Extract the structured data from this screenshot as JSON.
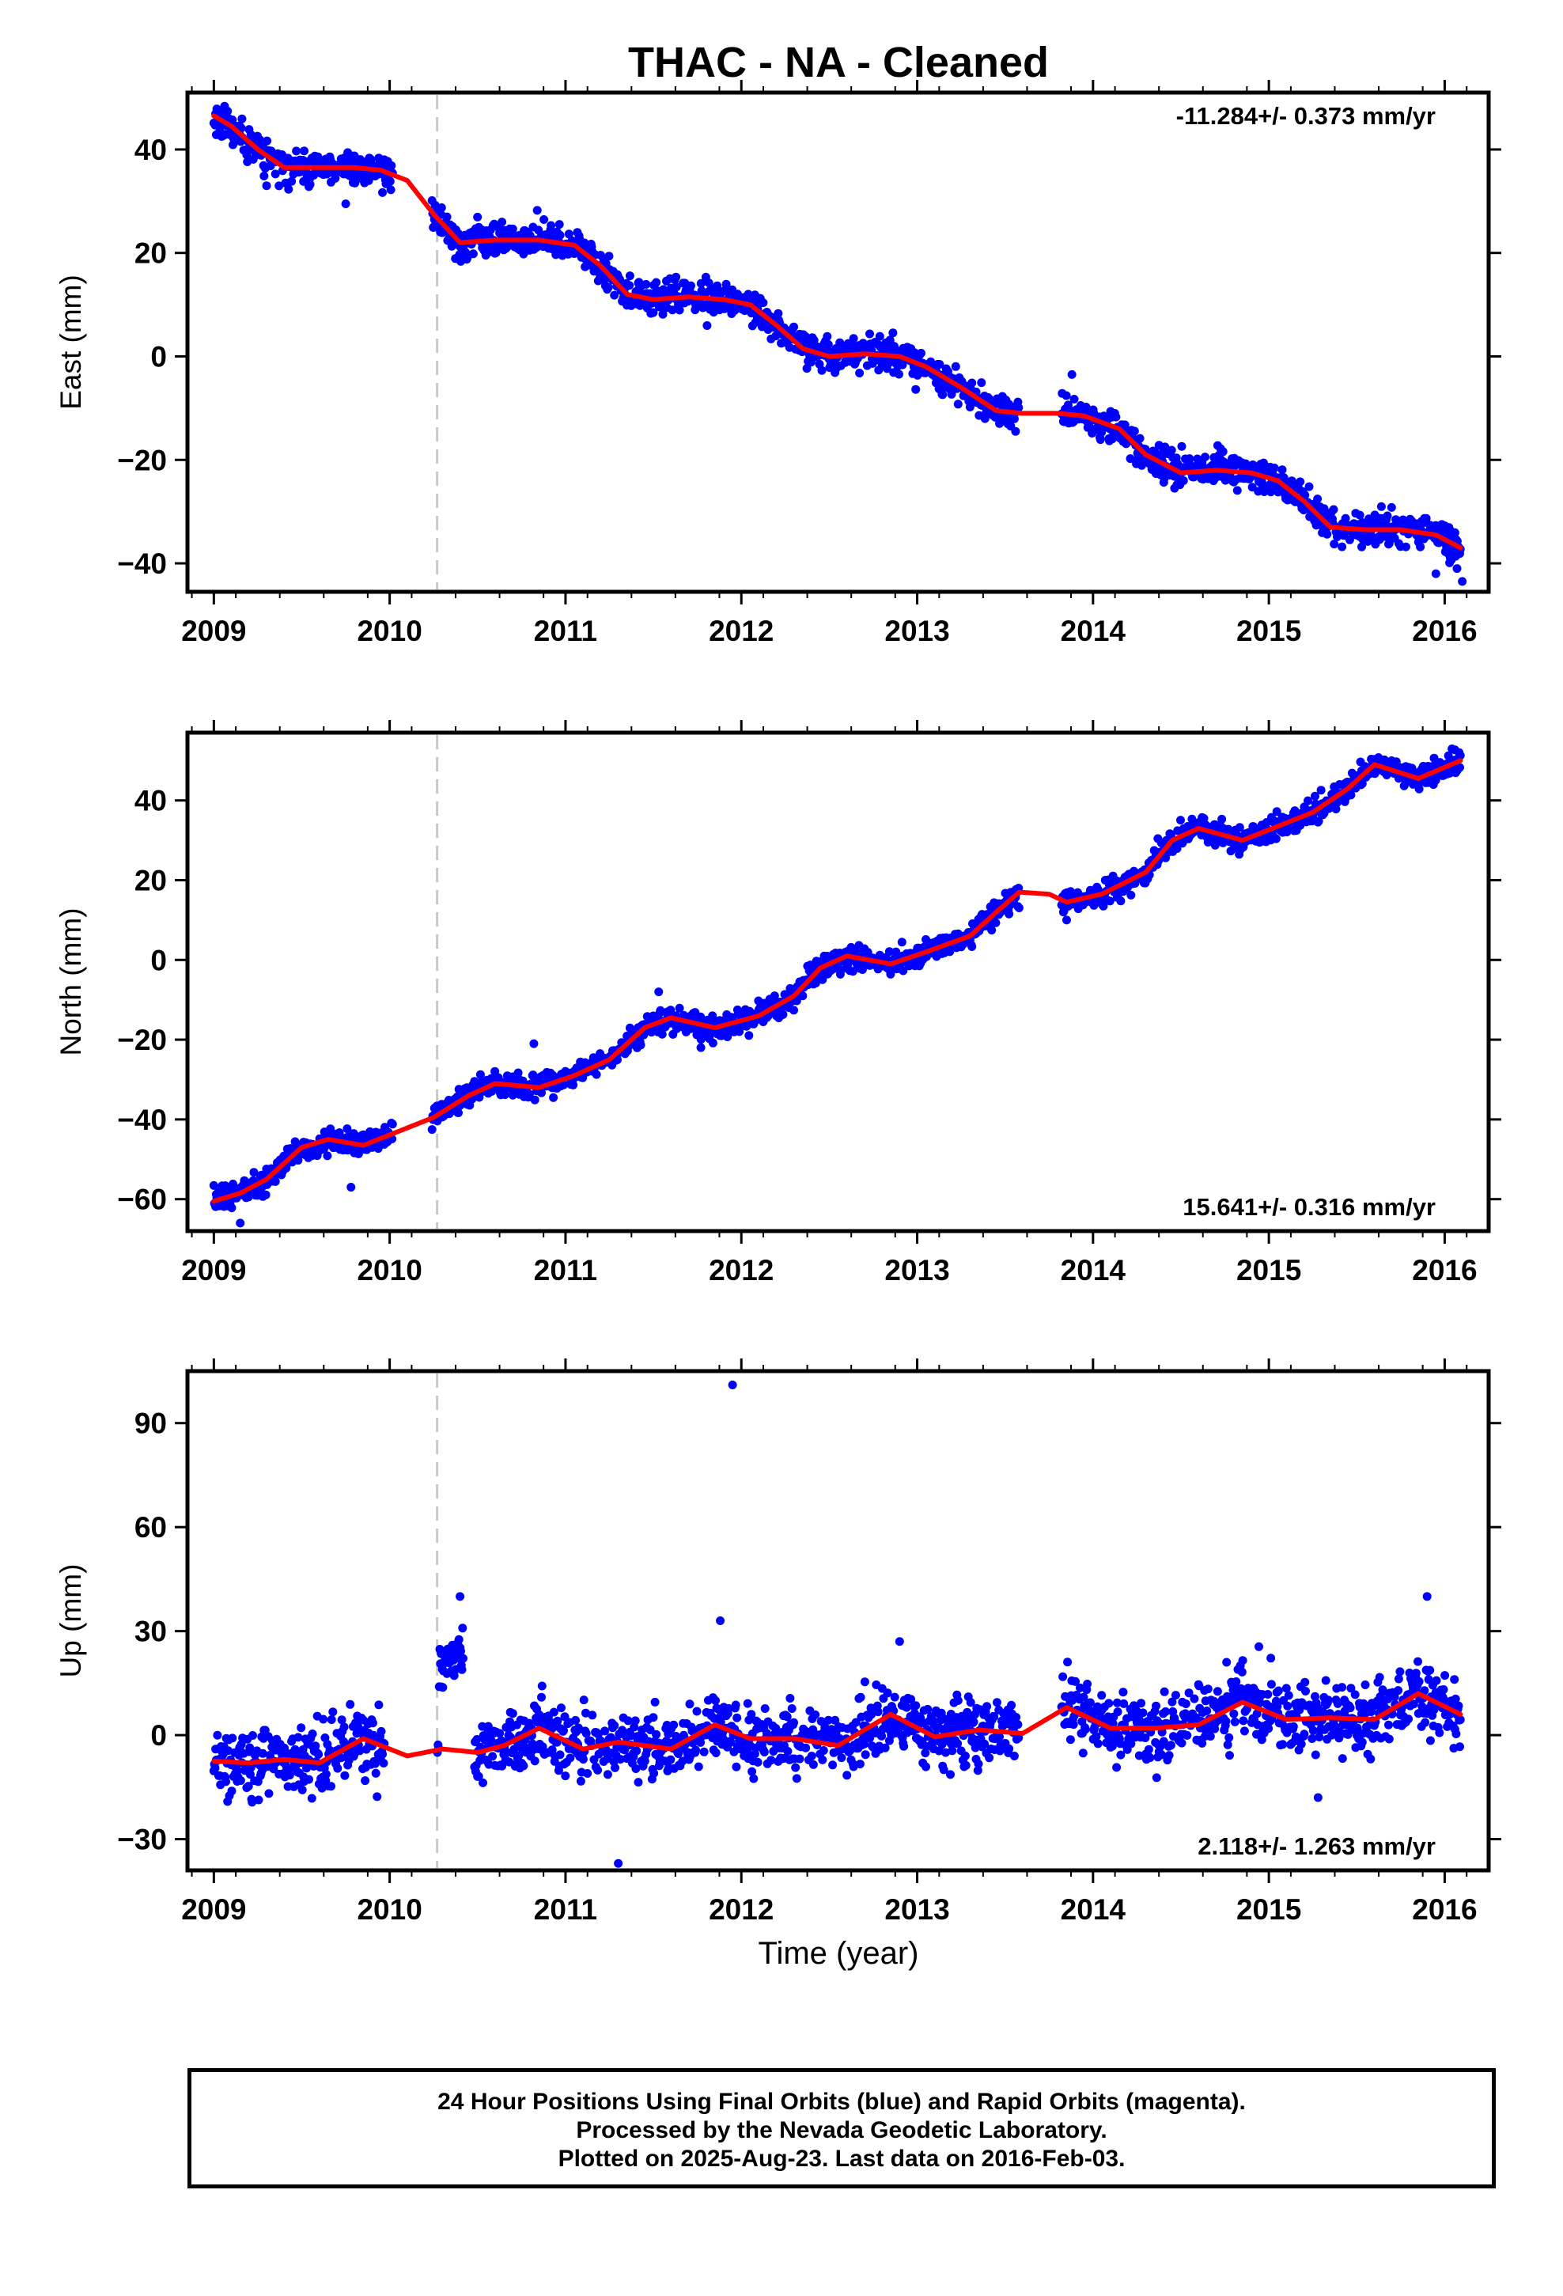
{
  "title": "THAC  - NA - Cleaned",
  "x_axis_label": "Time (year)",
  "footer": {
    "line1": "24 Hour Positions Using Final Orbits (blue) and Rapid Orbits (magenta).",
    "line2": "Processed by the Nevada Geodetic Laboratory.",
    "line3": "Plotted on 2025-Aug-23. Last data on 2016-Feb-03."
  },
  "colors": {
    "data_points": "#0000ff",
    "model_line": "#ff0000",
    "event_line": "#c8c8c8"
  },
  "chart_data": [
    {
      "type": "scatter",
      "name": "east",
      "ylabel": "East (mm)",
      "rate_label": "-11.284+/- 0.373 mm/yr",
      "rate_position": "top-right",
      "xlim": [
        2008.85,
        2016.25
      ],
      "ylim": [
        -45.5,
        51
      ],
      "x_ticks": [
        2009,
        2010,
        2011,
        2012,
        2013,
        2014,
        2015,
        2016
      ],
      "y_ticks": [
        -40,
        -20,
        0,
        20,
        40
      ],
      "y_tick_labels": [
        "−40",
        "−20",
        "0",
        "20",
        "40"
      ],
      "event_lines": [
        2010.27
      ],
      "model_curve": {
        "x": [
          2009.0,
          2009.1,
          2009.25,
          2009.4,
          2009.6,
          2009.8,
          2009.95,
          2010.1,
          2010.25,
          2010.4,
          2010.6,
          2010.85,
          2011.05,
          2011.2,
          2011.35,
          2011.5,
          2011.7,
          2011.9,
          2012.05,
          2012.2,
          2012.35,
          2012.5,
          2012.7,
          2012.9,
          2013.05,
          2013.25,
          2013.45,
          2013.6,
          2013.8,
          2013.95,
          2014.15,
          2014.3,
          2014.5,
          2014.7,
          2014.9,
          2015.05,
          2015.2,
          2015.35,
          2015.55,
          2015.75,
          2015.95,
          2016.09
        ],
        "y": [
          46.5,
          44.5,
          40,
          36.5,
          36.5,
          36.5,
          36,
          34,
          27.5,
          22,
          22.5,
          22.5,
          21.5,
          17.5,
          12,
          11,
          11.5,
          11,
          10,
          6,
          1.5,
          0,
          0.5,
          0,
          -2,
          -6,
          -10.5,
          -11,
          -11,
          -11.5,
          -14,
          -19,
          -22.5,
          -22,
          -22.5,
          -24,
          -28,
          -33,
          -33.5,
          -33.5,
          -34.5,
          -37
        ]
      },
      "observations": {
        "trend": {
          "x": [
            2009.0,
            2016.09
          ],
          "y": [
            45,
            -38
          ]
        },
        "noise_sd": 1.6,
        "outliers": {
          "x": [
            2009.75,
            2009.3,
            2015.95,
            2016.1,
            2016.07,
            2013.88
          ],
          "y": [
            29.5,
            33,
            -42,
            -43.5,
            -41,
            -3.5
          ]
        }
      }
    },
    {
      "type": "scatter",
      "name": "north",
      "ylabel": "North (mm)",
      "rate_label": "15.641+/- 0.316 mm/yr",
      "rate_position": "bottom-right",
      "xlim": [
        2008.85,
        2016.25
      ],
      "ylim": [
        -68,
        57
      ],
      "x_ticks": [
        2009,
        2010,
        2011,
        2012,
        2013,
        2014,
        2015,
        2016
      ],
      "y_ticks": [
        -60,
        -40,
        -20,
        0,
        20,
        40
      ],
      "y_tick_labels": [
        "−60",
        "−40",
        "−20",
        "0",
        "20",
        "40"
      ],
      "event_lines": [
        2010.27
      ],
      "model_curve": {
        "x": [
          2009.0,
          2009.15,
          2009.3,
          2009.5,
          2009.65,
          2009.85,
          2010.05,
          2010.25,
          2010.45,
          2010.6,
          2010.85,
          2011.05,
          2011.25,
          2011.45,
          2011.6,
          2011.85,
          2012.1,
          2012.3,
          2012.45,
          2012.6,
          2012.85,
          2013.05,
          2013.3,
          2013.45,
          2013.58,
          2013.75,
          2013.85,
          2014.05,
          2014.3,
          2014.45,
          2014.6,
          2014.85,
          2015.05,
          2015.25,
          2015.45,
          2015.6,
          2015.85,
          2016.09
        ],
        "y": [
          -60.5,
          -58.5,
          -55,
          -47,
          -45,
          -46.5,
          -43,
          -39.5,
          -34,
          -31,
          -32,
          -29,
          -25,
          -17,
          -14.5,
          -17,
          -14,
          -9,
          -2,
          1,
          -1,
          2,
          6,
          12,
          17,
          16.5,
          14.5,
          16.5,
          22,
          30,
          33,
          30,
          33.5,
          37,
          43,
          49,
          45.5,
          50
        ]
      },
      "observations": {
        "trend": {
          "x": [
            2009.0,
            2016.09
          ],
          "y": [
            -60,
            51
          ]
        },
        "noise_sd": 1.5,
        "outliers": {
          "x": [
            2009.15,
            2009.78,
            2011.53,
            2010.82,
            2013.85,
            2011.77
          ],
          "y": [
            -66,
            -57,
            -8,
            -21,
            10,
            -22
          ]
        }
      }
    },
    {
      "type": "scatter",
      "name": "up",
      "ylabel": "Up (mm)",
      "rate_label": "2.118+/- 1.263 mm/yr",
      "rate_position": "bottom-right",
      "xlim": [
        2008.85,
        2016.25
      ],
      "ylim": [
        -39,
        105
      ],
      "x_ticks": [
        2009,
        2010,
        2011,
        2012,
        2013,
        2014,
        2015,
        2016
      ],
      "y_ticks": [
        -30,
        0,
        30,
        60,
        90
      ],
      "y_tick_labels": [
        "−30",
        "0",
        "30",
        "60",
        "90"
      ],
      "event_lines": [
        2010.27
      ],
      "model_curve": {
        "x": [
          2009.0,
          2009.2,
          2009.4,
          2009.6,
          2009.85,
          2010.1,
          2010.3,
          2010.5,
          2010.65,
          2010.85,
          2011.1,
          2011.3,
          2011.6,
          2011.85,
          2012.05,
          2012.3,
          2012.55,
          2012.85,
          2013.1,
          2013.35,
          2013.6,
          2013.85,
          2014.1,
          2014.35,
          2014.6,
          2014.85,
          2015.1,
          2015.35,
          2015.6,
          2015.85,
          2016.09
        ],
        "y": [
          -7.5,
          -8,
          -7,
          -8,
          -1,
          -6,
          -4,
          -5,
          -3,
          2,
          -4,
          -2,
          -4,
          3,
          -1,
          -1,
          -3,
          6,
          -0.5,
          1.5,
          0.5,
          8,
          2,
          2,
          3,
          9.5,
          4.5,
          5,
          4.5,
          12,
          6
        ]
      },
      "observations": {
        "trend": {
          "x": [
            2009.0,
            2016.09
          ],
          "y": [
            -7.5,
            9
          ]
        },
        "noise_sd": 5,
        "outliers": {
          "x": [
            2011.95,
            2011.88,
            2011.3,
            2015.9,
            2010.4,
            2012.9,
            2015.28
          ],
          "y": [
            101,
            33,
            -37,
            40,
            40,
            27,
            -18
          ]
        }
      }
    }
  ]
}
